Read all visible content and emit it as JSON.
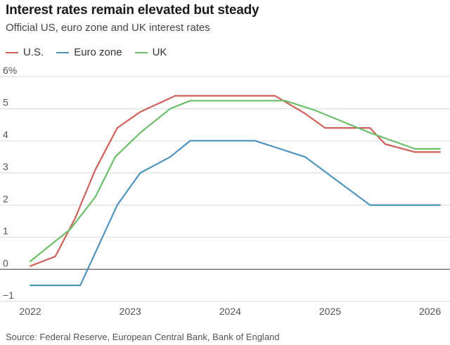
{
  "chart_data": {
    "type": "line",
    "title": "Interest rates remain elevated but steady",
    "subtitle": "Official US, euro zone and UK interest rates",
    "source": "Source: Federal Reserve, European Central Bank, Bank of England",
    "ylim": [
      -1,
      6
    ],
    "xlim": [
      2021.95,
      2026.2
    ],
    "y_ticks": [
      -1,
      0,
      1,
      2,
      3,
      4,
      5,
      6
    ],
    "y_tick_labels": [
      "−1",
      "0",
      "1",
      "2",
      "3",
      "4",
      "5",
      "6%"
    ],
    "x_ticks": [
      2022,
      2023,
      2024,
      2025,
      2026
    ],
    "x_tick_labels": [
      "2022",
      "2023",
      "2024",
      "2025",
      "2026"
    ],
    "zero_line": true,
    "grid": true,
    "legend_position": "top-left",
    "series": [
      {
        "name": "U.S.",
        "color": "#d0605a",
        "points": [
          [
            2022.0,
            0.1
          ],
          [
            2022.25,
            0.4
          ],
          [
            2022.45,
            1.6
          ],
          [
            2022.65,
            3.1
          ],
          [
            2022.87,
            4.4
          ],
          [
            2023.1,
            4.9
          ],
          [
            2023.45,
            5.4
          ],
          [
            2024.45,
            5.4
          ],
          [
            2024.75,
            4.85
          ],
          [
            2024.95,
            4.4
          ],
          [
            2025.4,
            4.4
          ],
          [
            2025.55,
            3.9
          ],
          [
            2025.85,
            3.65
          ],
          [
            2026.1,
            3.65
          ]
        ]
      },
      {
        "name": "Euro zone",
        "color": "#4f94bd",
        "points": [
          [
            2022.0,
            -0.5
          ],
          [
            2022.5,
            -0.5
          ],
          [
            2022.87,
            2.0
          ],
          [
            2023.1,
            3.0
          ],
          [
            2023.4,
            3.5
          ],
          [
            2023.6,
            4.0
          ],
          [
            2024.25,
            4.0
          ],
          [
            2024.75,
            3.5
          ],
          [
            2025.4,
            2.0
          ],
          [
            2026.1,
            2.0
          ]
        ]
      },
      {
        "name": "UK",
        "color": "#6cbf6a",
        "points": [
          [
            2022.0,
            0.25
          ],
          [
            2022.4,
            1.25
          ],
          [
            2022.65,
            2.25
          ],
          [
            2022.85,
            3.5
          ],
          [
            2023.1,
            4.25
          ],
          [
            2023.4,
            5.0
          ],
          [
            2023.6,
            5.25
          ],
          [
            2024.55,
            5.25
          ],
          [
            2024.85,
            4.95
          ],
          [
            2025.4,
            4.25
          ],
          [
            2025.85,
            3.75
          ],
          [
            2026.1,
            3.75
          ]
        ]
      }
    ]
  }
}
